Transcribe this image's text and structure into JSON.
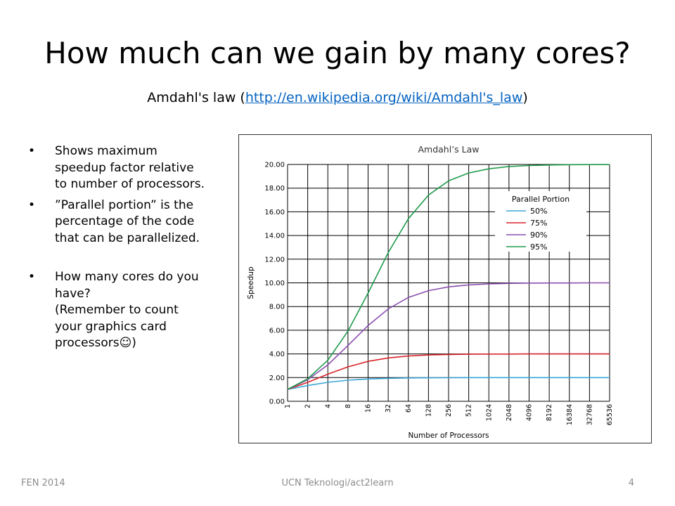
{
  "slide": {
    "title": "How much can we gain by many cores?",
    "subtitle_prefix": "Amdahl's law (",
    "subtitle_link": "http://en.wikipedia.org/wiki/Amdahl's_law",
    "subtitle_suffix": ")",
    "bullets": [
      {
        "lines": [
          "Shows maximum",
          "speedup factor relative",
          "to number of processors."
        ]
      },
      {
        "lines": [
          "”Parallel portion” is the",
          "percentage of the code",
          "that can be parallelized."
        ]
      },
      {
        "lines": [
          "How many cores do you",
          "have?",
          "(Remember to count",
          "your graphics card",
          "processors☺)"
        ]
      }
    ],
    "bullet_symbol": "•",
    "footer_left": "FEN 2014",
    "footer_center": "UCN Teknologi/act2learn",
    "footer_right": "4"
  },
  "chart_data": {
    "type": "line",
    "title": "Amdahl’s Law",
    "xlabel": "Number of Processors",
    "ylabel": "Speedup",
    "x_scale": "log2",
    "categories": [
      "1",
      "2",
      "4",
      "8",
      "16",
      "32",
      "64",
      "128",
      "256",
      "512",
      "1024",
      "2048",
      "4096",
      "8192",
      "16384",
      "32768",
      "65536"
    ],
    "y_ticks": [
      "0.00",
      "2.00",
      "4.00",
      "6.00",
      "8.00",
      "10.00",
      "12.00",
      "14.00",
      "16.00",
      "18.00",
      "20.00"
    ],
    "ylim": [
      0,
      20
    ],
    "grid": true,
    "legend_title": "Parallel Portion",
    "legend_position": "top-right",
    "series": [
      {
        "name": "50%",
        "color": "#3aa6d8",
        "values": [
          1.0,
          1.33,
          1.6,
          1.78,
          1.88,
          1.94,
          1.97,
          1.98,
          1.99,
          2.0,
          2.0,
          2.0,
          2.0,
          2.0,
          2.0,
          2.0,
          2.0
        ]
      },
      {
        "name": "75%",
        "color": "#d9242b",
        "values": [
          1.0,
          1.6,
          2.29,
          2.91,
          3.37,
          3.66,
          3.82,
          3.91,
          3.95,
          3.98,
          3.99,
          3.99,
          4.0,
          4.0,
          4.0,
          4.0,
          4.0
        ]
      },
      {
        "name": "90%",
        "color": "#8a4fb0",
        "values": [
          1.0,
          1.82,
          3.08,
          4.71,
          6.4,
          7.8,
          8.77,
          9.34,
          9.66,
          9.83,
          9.91,
          9.96,
          9.98,
          9.99,
          9.99,
          10.0,
          10.0
        ]
      },
      {
        "name": "95%",
        "color": "#1e9a4c",
        "values": [
          1.0,
          1.9,
          3.48,
          5.93,
          9.14,
          12.55,
          15.42,
          17.41,
          18.62,
          19.28,
          19.63,
          19.82,
          19.91,
          19.95,
          19.98,
          19.99,
          19.99
        ]
      }
    ]
  }
}
